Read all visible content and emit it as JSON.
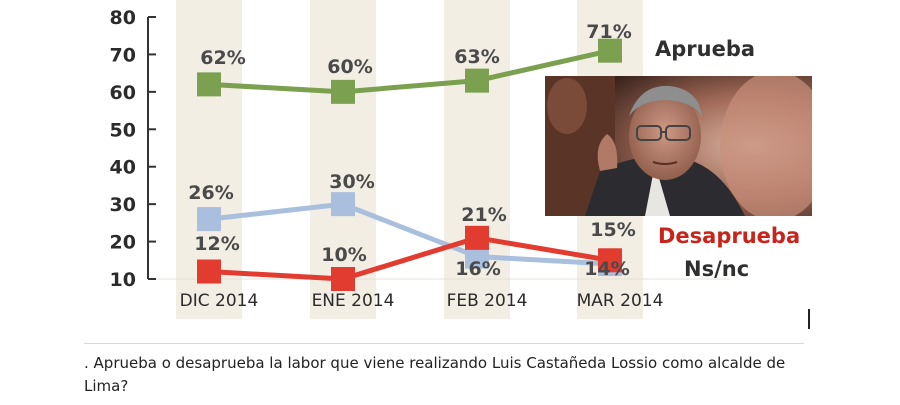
{
  "chart_data": {
    "type": "line",
    "categories": [
      "DIC 2014",
      "ENE 2014",
      "FEB 2014",
      "MAR 2014"
    ],
    "ylim": [
      10,
      80
    ],
    "yticks": [
      "10",
      "20",
      "30",
      "40",
      "50",
      "60",
      "70",
      "80"
    ],
    "series": [
      {
        "name": "Aprueba",
        "values": [
          62,
          60,
          63,
          71
        ],
        "labels": [
          "62%",
          "60%",
          "63%",
          "71%"
        ],
        "color": "#7aa050",
        "name_color": "#2f2f2f"
      },
      {
        "name": "Ns/nc",
        "values": [
          26,
          30,
          16,
          14
        ],
        "labels": [
          "26%",
          "30%",
          "16%",
          "14%"
        ],
        "color": "#a9bfdd",
        "name_color": "#2f2f2f"
      },
      {
        "name": "Desaprueba",
        "values": [
          12,
          10,
          21,
          15
        ],
        "labels": [
          "12%",
          "10%",
          "21%",
          "15%"
        ],
        "color": "#e23b30",
        "name_color": "#c8241b"
      }
    ],
    "colors": {
      "band": "#f2eee3",
      "axis": "#333333"
    }
  },
  "photo": {
    "description_icon": "portrait-photo"
  },
  "caption": ". Aprueba o desaprueba la labor que viene realizando Luis Castañeda Lossio como alcalde de Lima?"
}
